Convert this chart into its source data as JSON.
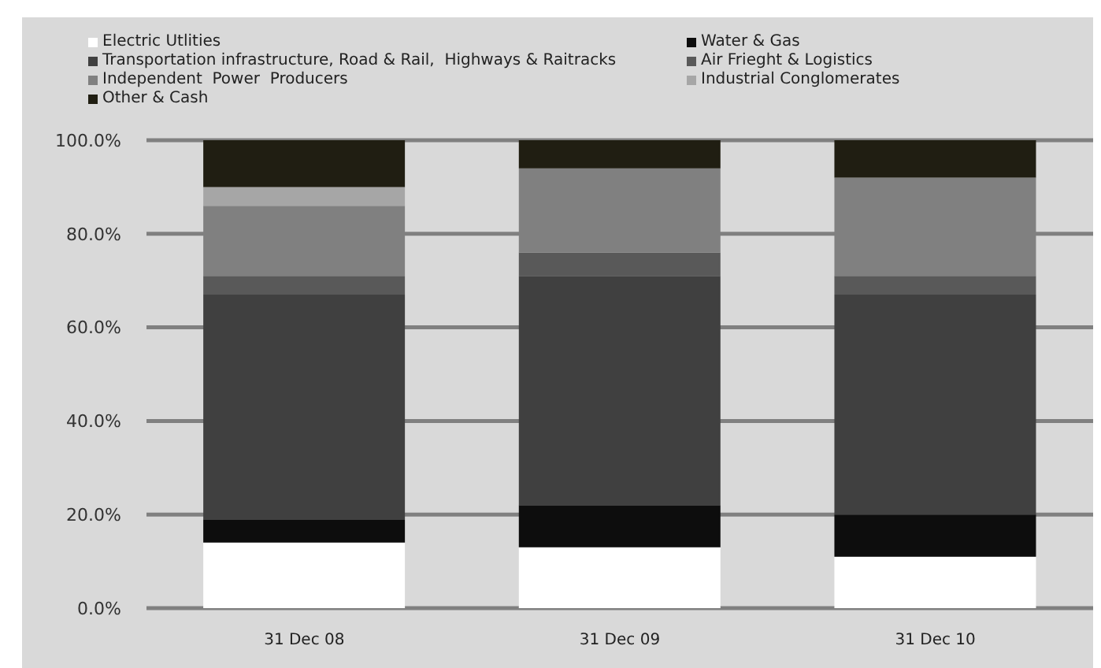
{
  "chart_data": {
    "type": "bar",
    "stacked": true,
    "legend": "top",
    "grid": "y",
    "categories": [
      "31 Dec 08",
      "31 Dec 09",
      "31 Dec 10"
    ],
    "series": [
      {
        "name": "Electric Utlities",
        "color": "#ffffff",
        "values": [
          14,
          13,
          11
        ]
      },
      {
        "name": "Water & Gas",
        "color": "#0d0d0d",
        "values": [
          5,
          9,
          9
        ]
      },
      {
        "name": "Transportation infrastructure, Road & Rail,  Highways & Raitracks",
        "color": "#404040",
        "values": [
          48,
          49,
          47
        ]
      },
      {
        "name": "Air Frieght & Logistics",
        "color": "#595959",
        "values": [
          4,
          5,
          4
        ]
      },
      {
        "name": "Independent  Power  Producers",
        "color": "#808080",
        "values": [
          15,
          18,
          21
        ]
      },
      {
        "name": "Industrial Conglomerates",
        "color": "#a6a6a6",
        "values": [
          4,
          0,
          0
        ]
      },
      {
        "name": "Other & Cash",
        "color": "#201e12",
        "values": [
          10,
          6,
          8
        ]
      }
    ],
    "ylim": [
      0,
      100
    ],
    "yticks": [
      {
        "value": 0,
        "label": "0.0%"
      },
      {
        "value": 20,
        "label": "20.0%"
      },
      {
        "value": 40,
        "label": "40.0%"
      },
      {
        "value": 60,
        "label": "60.0%"
      },
      {
        "value": 80,
        "label": "80.0%"
      },
      {
        "value": 100,
        "label": "100.0%"
      }
    ]
  }
}
